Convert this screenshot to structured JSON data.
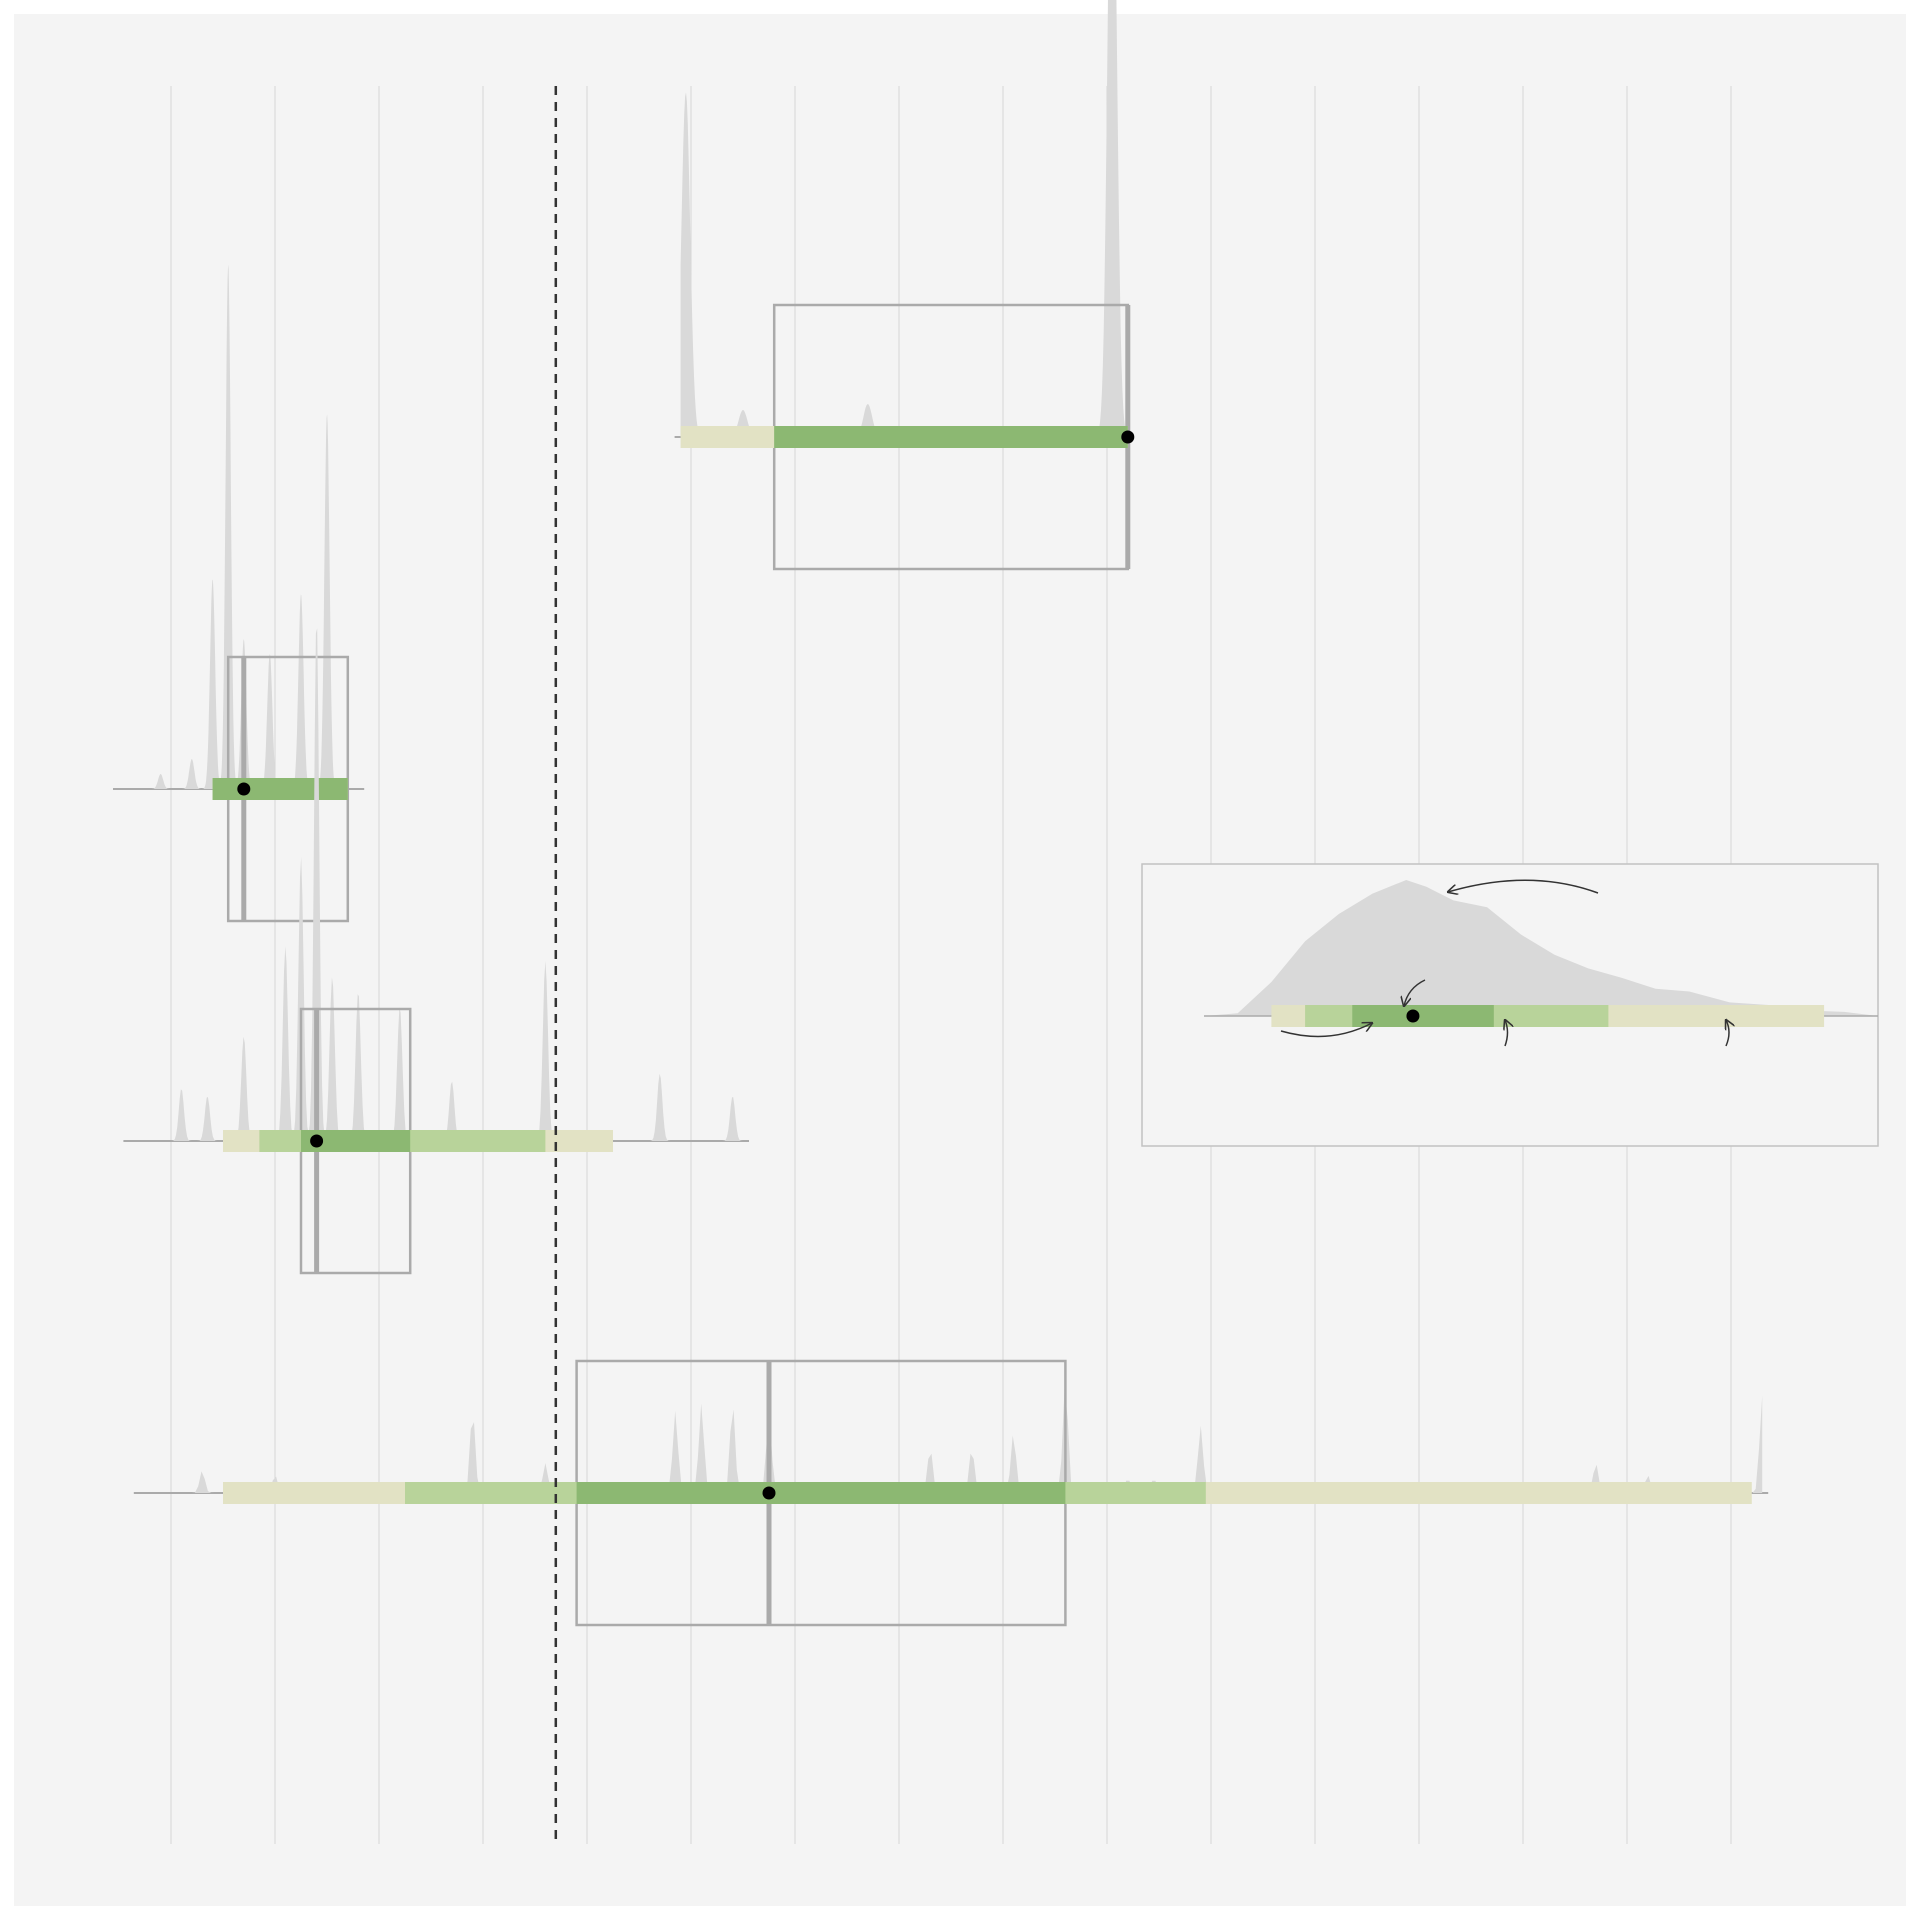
{
  "colors": {
    "background": "#f4f4f4",
    "gridline": "#d6d6d6",
    "density": "#d9d9d9",
    "box": "#aaaaaa",
    "interval_outer": "#e2e2c4",
    "interval_middle": "#b8d39a",
    "interval_inner": "#8cb872",
    "point": "#000000",
    "reference_line": "#333333",
    "inset_border": "#c2c2c2",
    "arrow": "#333333"
  },
  "chart_data": {
    "type": "halfeye-interval",
    "title": "",
    "xlabel": "",
    "ylabel": "",
    "xlim": [
      0,
      16
    ],
    "grid_x": [
      0.5,
      1.5,
      2.5,
      3.5,
      4.5,
      5.5,
      6.5,
      7.5,
      8.5,
      9.5,
      10.5,
      11.5,
      12.5,
      13.5,
      14.5,
      15.5
    ],
    "grid_on": true,
    "reference_line_x": 4.2,
    "series": [
      {
        "row": 1,
        "density_range": [
          5.4,
          9.7
        ],
        "density_peaks": [
          [
            5.45,
            2.3
          ],
          [
            6.0,
            0.18
          ],
          [
            7.2,
            0.22
          ],
          [
            9.55,
            4.6
          ]
        ],
        "box": {
          "q1": 6.3,
          "median": 9.7,
          "q3": 9.7
        },
        "intervals": {
          "outer": [
            5.4,
            9.7
          ],
          "middle": [
            6.3,
            9.7
          ],
          "inner": [
            6.3,
            9.7
          ]
        },
        "point": 9.7
      },
      {
        "row": 2,
        "density_range": [
          0.0,
          2.3
        ],
        "density_peaks": [
          [
            0.4,
            0.1
          ],
          [
            0.7,
            0.2
          ],
          [
            0.9,
            1.4
          ],
          [
            1.05,
            3.5
          ],
          [
            1.2,
            1.0
          ],
          [
            1.45,
            0.9
          ],
          [
            1.75,
            1.3
          ],
          [
            2.0,
            2.5
          ]
        ],
        "box": {
          "q1": 1.05,
          "median": 1.2,
          "q3": 2.2
        },
        "intervals": {
          "outer": [
            0.9,
            2.2
          ],
          "middle": [
            0.9,
            2.2
          ],
          "inner": [
            0.9,
            2.2
          ]
        },
        "point": 1.2
      },
      {
        "row": 3,
        "density_range": [
          0.1,
          6.0
        ],
        "density_peaks": [
          [
            0.6,
            0.35
          ],
          [
            0.85,
            0.3
          ],
          [
            1.2,
            0.7
          ],
          [
            1.6,
            1.3
          ],
          [
            1.75,
            1.9
          ],
          [
            1.9,
            3.5
          ],
          [
            2.05,
            1.1
          ],
          [
            2.3,
            1.0
          ],
          [
            2.7,
            0.9
          ],
          [
            3.2,
            0.4
          ],
          [
            4.1,
            1.2
          ],
          [
            5.2,
            0.45
          ],
          [
            5.9,
            0.3
          ]
        ],
        "box": {
          "q1": 1.75,
          "median": 1.9,
          "q3": 2.8
        },
        "intervals": {
          "outer": [
            1.0,
            4.75
          ],
          "middle": [
            1.35,
            4.1
          ],
          "inner": [
            1.75,
            2.8
          ]
        },
        "point": 1.9
      },
      {
        "row": 4,
        "density_range": [
          0.2,
          15.8
        ],
        "density_peaks": [
          [
            0.8,
            0.15
          ],
          [
            1.5,
            0.12
          ],
          [
            3.4,
            0.55
          ],
          [
            4.1,
            0.2
          ],
          [
            5.35,
            0.55
          ],
          [
            5.6,
            0.6
          ],
          [
            5.9,
            0.6
          ],
          [
            6.25,
            0.55
          ],
          [
            7.8,
            0.3
          ],
          [
            8.2,
            0.3
          ],
          [
            8.6,
            0.4
          ],
          [
            9.1,
            0.75
          ],
          [
            9.7,
            0.1
          ],
          [
            9.95,
            0.1
          ],
          [
            10.4,
            0.45
          ],
          [
            14.2,
            0.2
          ],
          [
            14.7,
            0.12
          ],
          [
            15.8,
            0.65
          ]
        ],
        "box": {
          "q1": 4.4,
          "median": 6.25,
          "q3": 9.1
        },
        "intervals": {
          "outer": [
            1.0,
            15.7
          ],
          "middle": [
            2.75,
            10.45
          ],
          "inner": [
            4.4,
            9.1
          ]
        },
        "point": 6.25
      }
    ],
    "inset": {
      "density_profile": [
        [
          0,
          0
        ],
        [
          0.05,
          0.02
        ],
        [
          0.1,
          0.25
        ],
        [
          0.15,
          0.55
        ],
        [
          0.2,
          0.75
        ],
        [
          0.25,
          0.9
        ],
        [
          0.3,
          1.0
        ],
        [
          0.33,
          0.95
        ],
        [
          0.37,
          0.85
        ],
        [
          0.42,
          0.8
        ],
        [
          0.47,
          0.6
        ],
        [
          0.52,
          0.45
        ],
        [
          0.57,
          0.35
        ],
        [
          0.62,
          0.28
        ],
        [
          0.67,
          0.2
        ],
        [
          0.72,
          0.18
        ],
        [
          0.78,
          0.1
        ],
        [
          0.84,
          0.08
        ],
        [
          0.9,
          0.04
        ],
        [
          0.95,
          0.03
        ],
        [
          1.0,
          0
        ]
      ],
      "intervals": {
        "outer": [
          0.1,
          0.92
        ],
        "middle": [
          0.15,
          0.6
        ],
        "inner": [
          0.22,
          0.43
        ]
      },
      "point": 0.31
    }
  }
}
